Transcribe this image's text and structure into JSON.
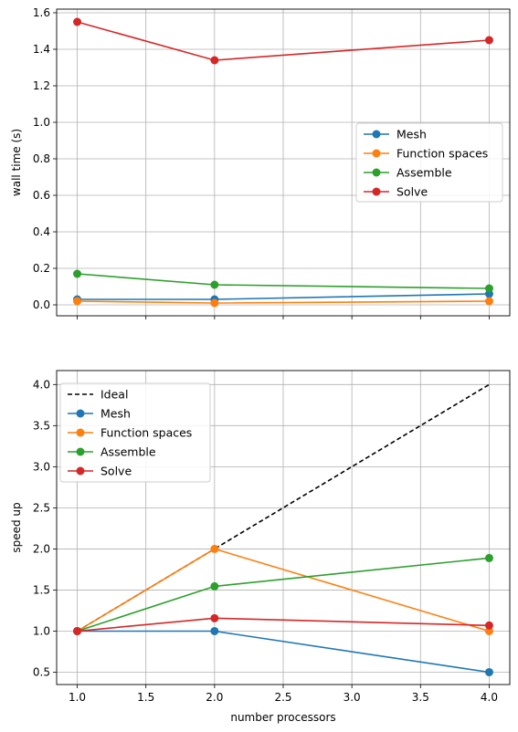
{
  "chart_data": [
    {
      "type": "line",
      "ylabel": "wall time (s)",
      "xlabel": "",
      "x": [
        1,
        2,
        4
      ],
      "xlim": [
        0.85,
        4.15
      ],
      "ylim": [
        -0.06,
        1.62
      ],
      "xticks": [
        1.0,
        1.5,
        2.0,
        2.5,
        3.0,
        3.5,
        4.0
      ],
      "yticks": [
        0.0,
        0.2,
        0.4,
        0.6,
        0.8,
        1.0,
        1.2,
        1.4,
        1.6
      ],
      "ytick_labels": [
        "0.0",
        "0.2",
        "0.4",
        "0.6",
        "0.8",
        "1.0",
        "1.2",
        "1.4",
        "1.6"
      ],
      "show_xtick_labels": false,
      "grid": true,
      "legend_position": "center-right",
      "series": [
        {
          "name": "Mesh",
          "color": "#1f77b4",
          "values": [
            0.03,
            0.03,
            0.06
          ],
          "marker": "circle"
        },
        {
          "name": "Function spaces",
          "color": "#ff7f0e",
          "values": [
            0.02,
            0.01,
            0.02
          ],
          "marker": "circle"
        },
        {
          "name": "Assemble",
          "color": "#2ca02c",
          "values": [
            0.17,
            0.11,
            0.09
          ],
          "marker": "circle"
        },
        {
          "name": "Solve",
          "color": "#d62728",
          "values": [
            1.55,
            1.34,
            1.45
          ],
          "marker": "circle"
        }
      ]
    },
    {
      "type": "line",
      "ylabel": "speed up",
      "xlabel": "number processors",
      "x": [
        1,
        2,
        4
      ],
      "xlim": [
        0.85,
        4.15
      ],
      "ylim": [
        0.35,
        4.17
      ],
      "xticks": [
        1.0,
        1.5,
        2.0,
        2.5,
        3.0,
        3.5,
        4.0
      ],
      "xtick_labels": [
        "1.0",
        "1.5",
        "2.0",
        "2.5",
        "3.0",
        "3.5",
        "4.0"
      ],
      "yticks": [
        0.5,
        1.0,
        1.5,
        2.0,
        2.5,
        3.0,
        3.5,
        4.0
      ],
      "ytick_labels": [
        "0.5",
        "1.0",
        "1.5",
        "2.0",
        "2.5",
        "3.0",
        "3.5",
        "4.0"
      ],
      "show_xtick_labels": true,
      "grid": true,
      "legend_position": "top-left",
      "series": [
        {
          "name": "Ideal",
          "color": "#000000",
          "values": [
            1,
            2,
            4
          ],
          "marker": "none",
          "dashed": true
        },
        {
          "name": "Mesh",
          "color": "#1f77b4",
          "values": [
            1.0,
            1.0,
            0.5
          ],
          "marker": "circle"
        },
        {
          "name": "Function spaces",
          "color": "#ff7f0e",
          "values": [
            1.0,
            2.0,
            1.0
          ],
          "marker": "circle"
        },
        {
          "name": "Assemble",
          "color": "#2ca02c",
          "values": [
            1.0,
            1.545,
            1.889
          ],
          "marker": "circle"
        },
        {
          "name": "Solve",
          "color": "#d62728",
          "values": [
            1.0,
            1.157,
            1.069
          ],
          "marker": "circle"
        }
      ]
    }
  ]
}
